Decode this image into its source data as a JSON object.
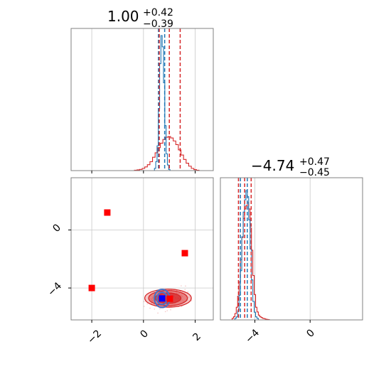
{
  "chart_data": {
    "type": "corner",
    "grid": true,
    "colors": {
      "hist_red": "#d62728",
      "hist_blue": "#1f77b4",
      "contour_red": "#d62728",
      "contour_blue": "#4a72c4",
      "marker_red": "#ff0000",
      "marker_blue": "#0000ff",
      "frame": "#808080",
      "grid": "#c8c8c8"
    },
    "panels": {
      "param1_hist": {
        "title": {
          "value": "1.00",
          "plus": "+0.42",
          "minus": "−0.39"
        },
        "xlim": [
          -2.8,
          2.7
        ],
        "quantile_lines": {
          "red": [
            0.61,
            1.0,
            1.42
          ],
          "blue": [
            0.58,
            0.82
          ]
        },
        "red_hist": {
          "x": [
            -0.3,
            -0.2,
            -0.1,
            0.0,
            0.1,
            0.2,
            0.3,
            0.4,
            0.5,
            0.6,
            0.7,
            0.8,
            0.9,
            1.0,
            1.1,
            1.2,
            1.3,
            1.4,
            1.5,
            1.6,
            1.7,
            1.8,
            1.9,
            2.0,
            2.1
          ],
          "y": [
            0.3,
            0.5,
            0.8,
            1.5,
            2.5,
            4.0,
            6.0,
            9.0,
            12.0,
            15.5,
            18.5,
            21.0,
            22.5,
            23.0,
            22.0,
            20.0,
            17.5,
            14.0,
            10.5,
            7.5,
            5.0,
            3.0,
            1.5,
            0.7,
            0.3
          ]
        },
        "blue_hist": {
          "x": [
            0.45,
            0.5,
            0.55,
            0.6,
            0.65,
            0.7,
            0.75,
            0.8,
            0.85,
            0.9,
            0.95,
            1.0
          ],
          "y": [
            2,
            8,
            22,
            55,
            95,
            120,
            110,
            78,
            40,
            15,
            5,
            1
          ]
        }
      },
      "param2_hist": {
        "title": {
          "value": "−4.74",
          "plus": "+0.47",
          "minus": "−0.45"
        },
        "xlim": [
          -6.5,
          3.8
        ],
        "quantile_lines": {
          "red": [
            -5.19,
            -4.74,
            -4.27
          ],
          "blue": [
            -5.05,
            -4.55
          ]
        },
        "red_hist": {
          "x": [
            -5.6,
            -5.5,
            -5.4,
            -5.3,
            -5.2,
            -5.1,
            -5.0,
            -4.9,
            -4.8,
            -4.7,
            -4.6,
            -4.5,
            -4.4,
            -4.3,
            -4.2,
            -4.1,
            -4.0,
            -3.9,
            -3.8,
            -3.7,
            -3.6,
            -3.5,
            -3.4,
            -3.3,
            -3.2,
            -3.1,
            -3.0
          ],
          "y": [
            1,
            2,
            4,
            8,
            15,
            24,
            38,
            52,
            64,
            70,
            72,
            74,
            70,
            58,
            44,
            28,
            16,
            8,
            5,
            3,
            2,
            1.5,
            1,
            0.8,
            0.5,
            0.3,
            0.2
          ]
        },
        "blue_hist": {
          "x": [
            -5.4,
            -5.3,
            -5.2,
            -5.1,
            -5.0,
            -4.9,
            -4.8,
            -4.7,
            -4.6,
            -4.5,
            -4.4,
            -4.3,
            -4.2,
            -4.1,
            -4.0,
            -3.9,
            -3.8
          ],
          "y": [
            1,
            2,
            6,
            16,
            32,
            54,
            70,
            78,
            84,
            80,
            65,
            46,
            26,
            12,
            5,
            2,
            1
          ]
        }
      },
      "joint": {
        "xlim": [
          -2.8,
          2.7
        ],
        "ylim": [
          -6.2,
          3.6
        ],
        "red_contours": [
          {
            "cx": 0.95,
            "cy": -4.7,
            "rx": 0.9,
            "ry": 0.62,
            "level": 3
          },
          {
            "cx": 0.95,
            "cy": -4.7,
            "rx": 0.75,
            "ry": 0.52,
            "level": 2
          },
          {
            "cx": 0.95,
            "cy": -4.7,
            "rx": 0.5,
            "ry": 0.36,
            "level": 1
          }
        ],
        "blue_contours": [
          {
            "cx": 0.72,
            "cy": -4.72,
            "rx": 0.3,
            "ry": 0.62
          },
          {
            "cx": 0.72,
            "cy": -4.72,
            "rx": 0.2,
            "ry": 0.42
          }
        ],
        "markers_red": [
          {
            "x": -1.4,
            "y": 1.2
          },
          {
            "x": -2.0,
            "y": -4.0
          },
          {
            "x": 1.6,
            "y": -1.6
          },
          {
            "x": 1.02,
            "y": -4.74
          }
        ],
        "markers_blue": [
          {
            "x": 0.72,
            "y": -4.72
          }
        ]
      }
    },
    "ticks": {
      "joint_x": [
        "−2",
        "0",
        "2"
      ],
      "joint_y": [
        "0",
        "−4"
      ],
      "param2_x": [
        "−4",
        "0"
      ]
    }
  }
}
